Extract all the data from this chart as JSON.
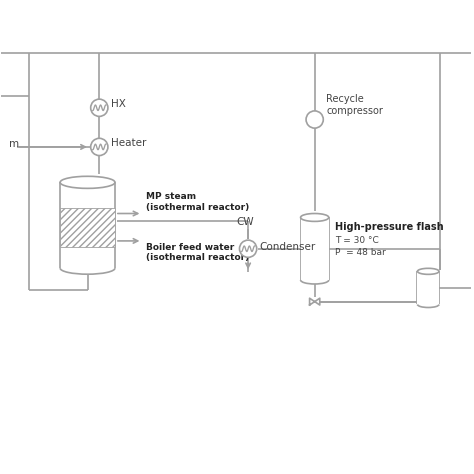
{
  "bg_color": "#ffffff",
  "line_color": "#a0a0a0",
  "text_color": "#444444",
  "bold_text_color": "#222222",
  "labels": {
    "HX": "HX",
    "Heater": "Heater",
    "stream": "m",
    "MP_steam": "MP steam\n(isothermal reactor)",
    "Boiler_feed": "Boiler feed water\n(isothermal reactor)",
    "Recycle": "Recycle\ncompressor",
    "CW": "CW",
    "Condenser": "Condenser",
    "HPflash": "High-pressure flash",
    "T": "T = 30 °C",
    "P": "P  = 48 bar"
  },
  "figsize": [
    4.74,
    4.74
  ],
  "dpi": 100
}
